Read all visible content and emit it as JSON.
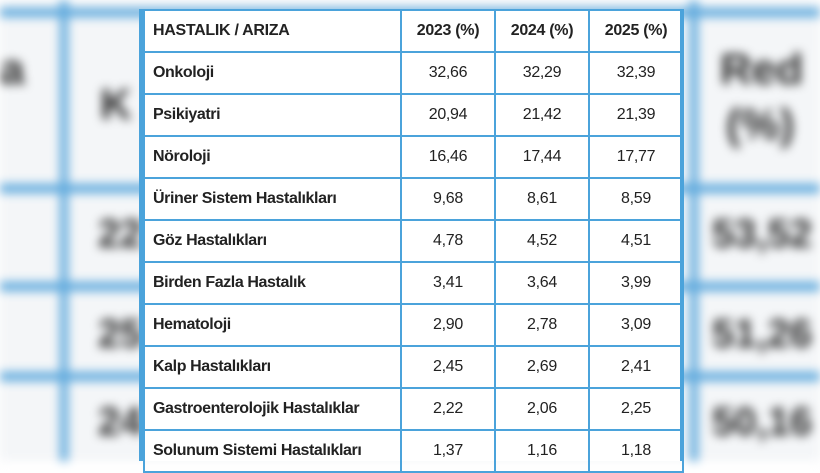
{
  "table": {
    "headers": [
      "HASTALIK / ARIZA",
      "2023 (%)",
      "2024 (%)",
      "2025 (%)"
    ],
    "rows": [
      [
        "Onkoloji",
        "32,66",
        "32,29",
        "32,39"
      ],
      [
        "Psikiyatri",
        "20,94",
        "21,42",
        "21,39"
      ],
      [
        "Nöroloji",
        "16,46",
        "17,44",
        "17,77"
      ],
      [
        "Üriner Sistem Hastalıkları",
        "9,68",
        "8,61",
        "8,59"
      ],
      [
        "Göz Hastalıkları",
        "4,78",
        "4,52",
        "4,51"
      ],
      [
        "Birden Fazla Hastalık",
        "3,41",
        "3,64",
        "3,99"
      ],
      [
        "Hematoloji",
        "2,90",
        "2,78",
        "3,09"
      ],
      [
        "Kalp Hastalıkları",
        "2,45",
        "2,69",
        "2,41"
      ],
      [
        "Gastroenterolojik Hastalıklar",
        "2,22",
        "2,06",
        "2,25"
      ],
      [
        "Solunum Sistemi Hastalıkları",
        "1,37",
        "1,16",
        "1,18"
      ]
    ]
  },
  "background": {
    "right_header": "Red (%)",
    "right_values": [
      "53,52",
      "51,26",
      "50,16"
    ],
    "left_fragments": [
      "a",
      "K",
      "22",
      "25",
      "24"
    ]
  },
  "colors": {
    "border": "#4ba3db",
    "text": "#222222"
  }
}
